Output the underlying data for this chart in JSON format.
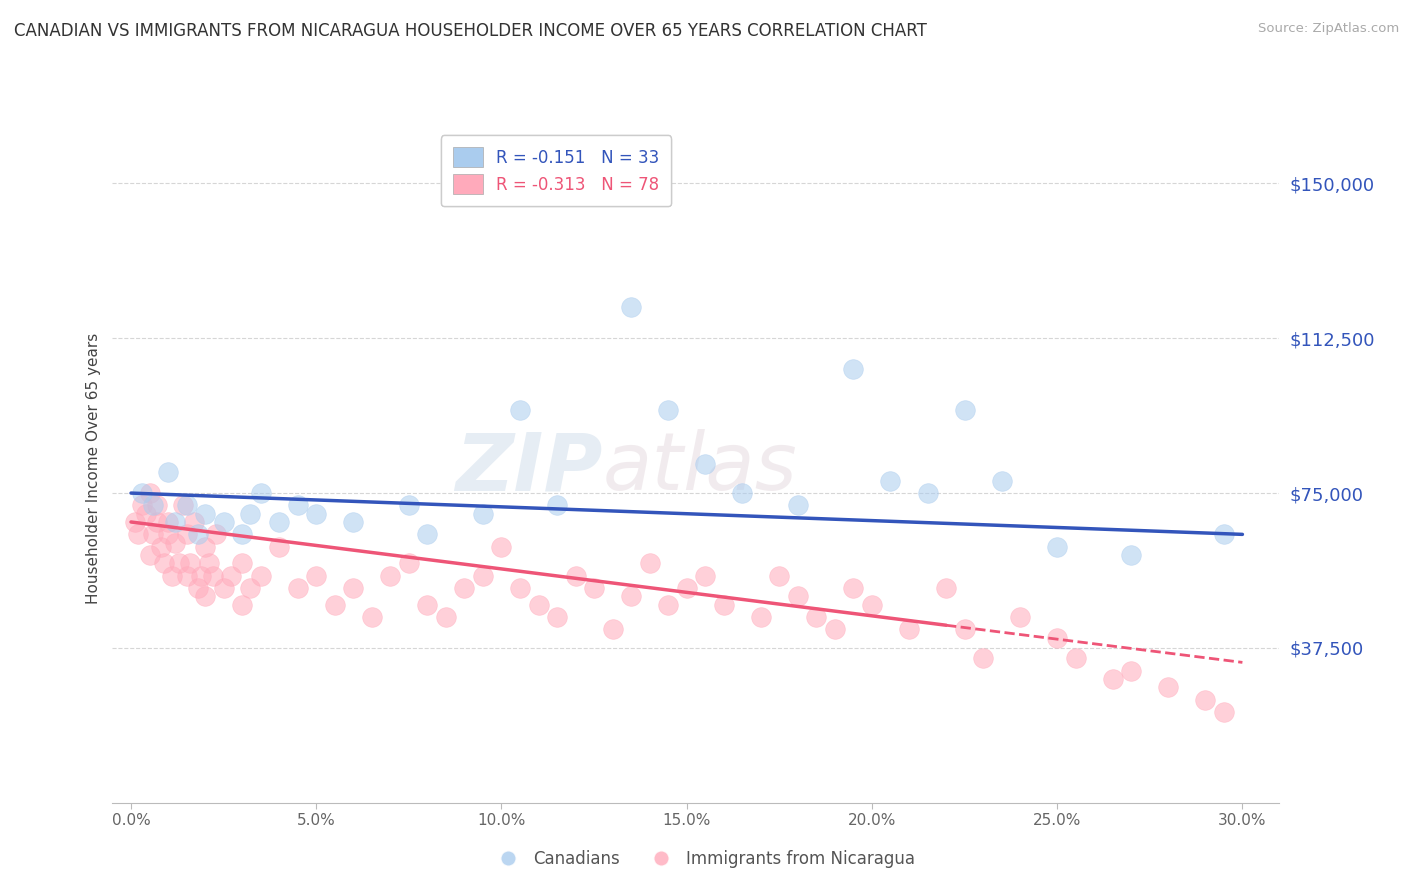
{
  "title": "CANADIAN VS IMMIGRANTS FROM NICARAGUA HOUSEHOLDER INCOME OVER 65 YEARS CORRELATION CHART",
  "source": "Source: ZipAtlas.com",
  "ylabel": "Householder Income Over 65 years",
  "xlabel_ticks": [
    "0.0%",
    "5.0%",
    "10.0%",
    "15.0%",
    "20.0%",
    "25.0%",
    "30.0%"
  ],
  "xlabel_vals": [
    0.0,
    5.0,
    10.0,
    15.0,
    20.0,
    25.0,
    30.0
  ],
  "ytick_labels": [
    "$37,500",
    "$75,000",
    "$112,500",
    "$150,000"
  ],
  "ytick_vals": [
    37500,
    75000,
    112500,
    150000
  ],
  "ylim": [
    0,
    162000
  ],
  "xlim": [
    -0.5,
    31
  ],
  "canadians_R": "-0.151",
  "canadians_N": "33",
  "nicaragua_R": "-0.313",
  "nicaragua_N": "78",
  "legend_label1": "Canadians",
  "legend_label2": "Immigrants from Nicaragua",
  "blue_color": "#aaccee",
  "pink_color": "#ffaabb",
  "blue_line_color": "#3355bb",
  "pink_line_color": "#ee5577",
  "watermark_zip": "ZIP",
  "watermark_atlas": "atlas",
  "canadians_x": [
    0.3,
    0.6,
    1.0,
    1.5,
    2.0,
    2.5,
    3.0,
    3.5,
    4.5,
    5.0,
    6.0,
    7.5,
    8.0,
    9.5,
    10.5,
    11.5,
    13.5,
    14.5,
    15.5,
    16.5,
    18.0,
    19.5,
    20.5,
    21.5,
    22.5,
    23.5,
    25.0,
    27.0,
    29.5,
    1.2,
    1.8,
    3.2,
    4.0
  ],
  "canadians_y": [
    75000,
    72000,
    80000,
    72000,
    70000,
    68000,
    65000,
    75000,
    72000,
    70000,
    68000,
    72000,
    65000,
    70000,
    95000,
    72000,
    120000,
    95000,
    82000,
    75000,
    72000,
    105000,
    78000,
    75000,
    95000,
    78000,
    62000,
    60000,
    65000,
    68000,
    65000,
    70000,
    68000
  ],
  "nicaragua_x": [
    0.1,
    0.2,
    0.3,
    0.4,
    0.5,
    0.5,
    0.6,
    0.7,
    0.7,
    0.8,
    0.9,
    1.0,
    1.0,
    1.1,
    1.2,
    1.3,
    1.4,
    1.5,
    1.5,
    1.6,
    1.7,
    1.8,
    1.9,
    2.0,
    2.0,
    2.1,
    2.2,
    2.3,
    2.5,
    2.7,
    3.0,
    3.0,
    3.2,
    3.5,
    4.0,
    4.5,
    5.0,
    5.5,
    6.0,
    6.5,
    7.0,
    7.5,
    8.0,
    8.5,
    9.0,
    9.5,
    10.0,
    10.5,
    11.0,
    11.5,
    12.0,
    12.5,
    13.0,
    13.5,
    14.0,
    14.5,
    15.0,
    15.5,
    16.0,
    17.0,
    17.5,
    18.0,
    18.5,
    19.0,
    19.5,
    20.0,
    21.0,
    22.0,
    22.5,
    23.0,
    24.0,
    25.0,
    25.5,
    26.5,
    27.0,
    28.0,
    29.0,
    29.5
  ],
  "nicaragua_y": [
    68000,
    65000,
    72000,
    70000,
    60000,
    75000,
    65000,
    68000,
    72000,
    62000,
    58000,
    65000,
    68000,
    55000,
    63000,
    58000,
    72000,
    65000,
    55000,
    58000,
    68000,
    52000,
    55000,
    62000,
    50000,
    58000,
    55000,
    65000,
    52000,
    55000,
    58000,
    48000,
    52000,
    55000,
    62000,
    52000,
    55000,
    48000,
    52000,
    45000,
    55000,
    58000,
    48000,
    45000,
    52000,
    55000,
    62000,
    52000,
    48000,
    45000,
    55000,
    52000,
    42000,
    50000,
    58000,
    48000,
    52000,
    55000,
    48000,
    45000,
    55000,
    50000,
    45000,
    42000,
    52000,
    48000,
    42000,
    52000,
    42000,
    35000,
    45000,
    40000,
    35000,
    30000,
    32000,
    28000,
    25000,
    22000
  ],
  "blue_reg_x0": 0,
  "blue_reg_y0": 75000,
  "blue_reg_x1": 30,
  "blue_reg_y1": 65000,
  "pink_solid_x0": 0,
  "pink_solid_y0": 68000,
  "pink_solid_x1": 22,
  "pink_solid_y1": 43000,
  "pink_dash_x0": 22,
  "pink_dash_y0": 43000,
  "pink_dash_x1": 30,
  "pink_dash_y1": 34000
}
